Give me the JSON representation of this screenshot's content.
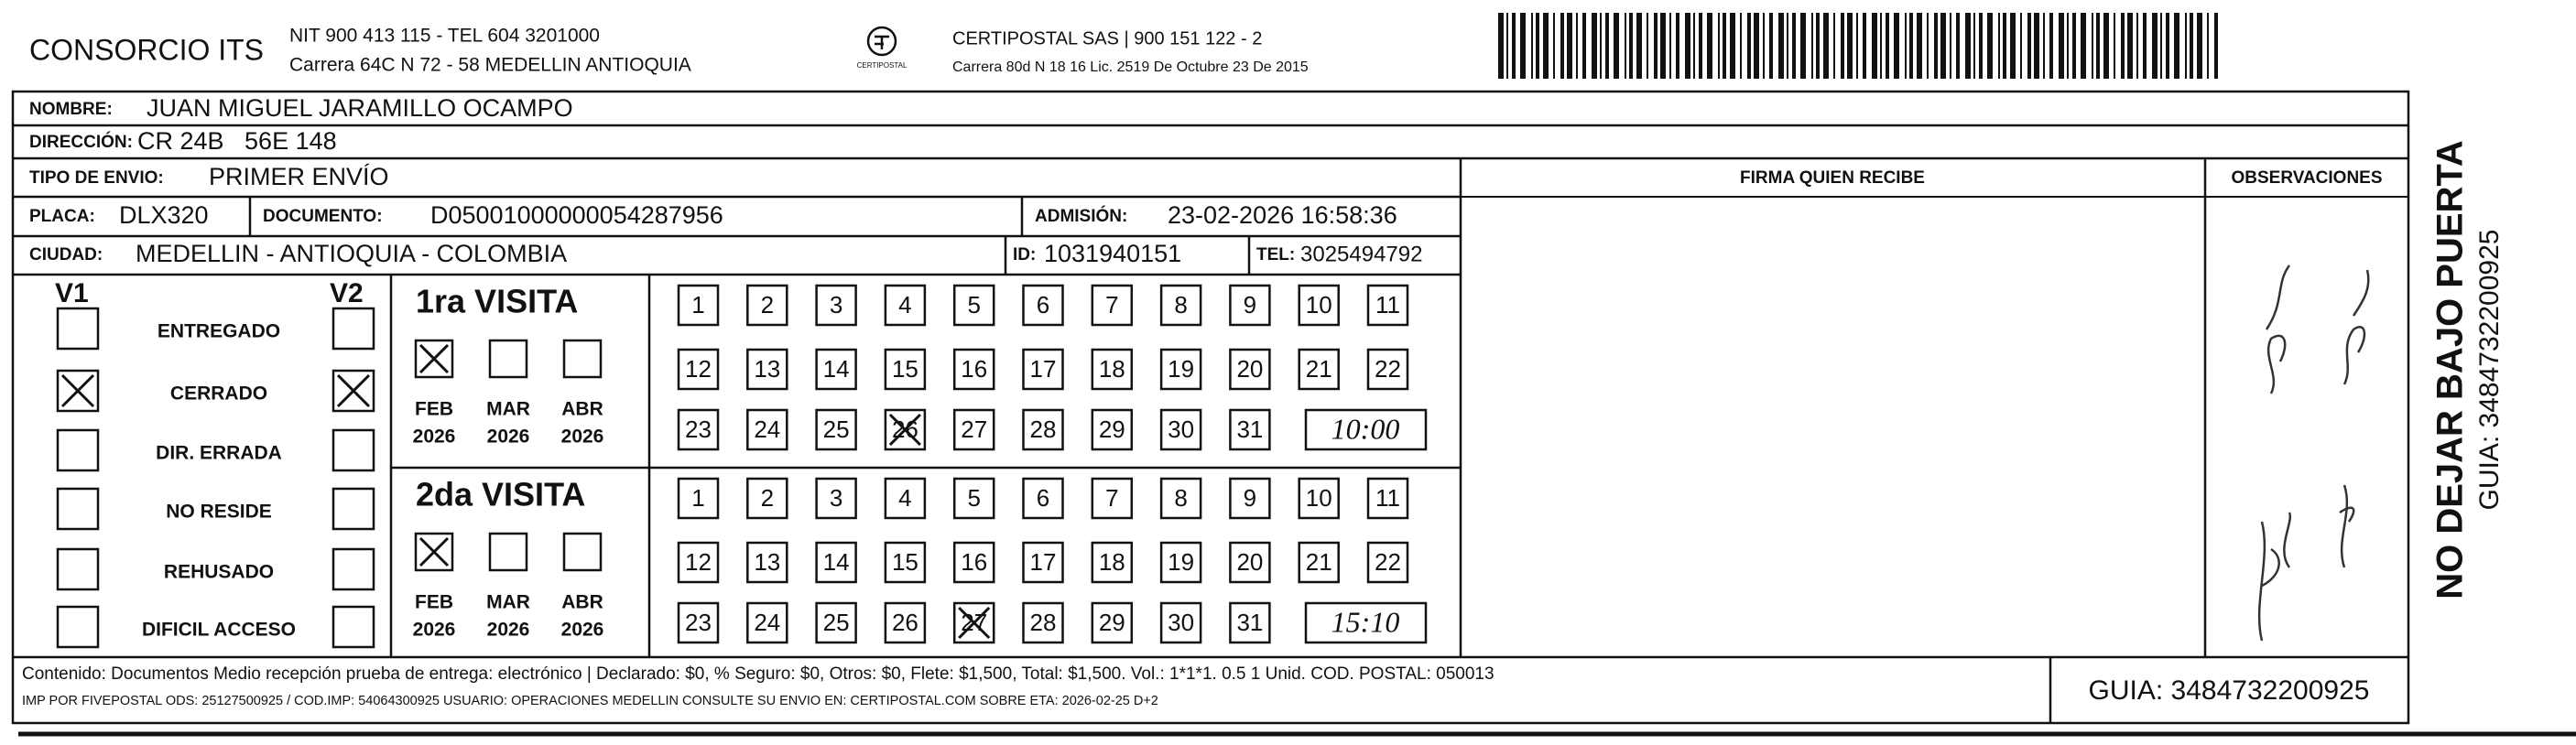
{
  "header": {
    "company": "CONSORCIO ITS",
    "nit": "NIT 900 413 115 - TEL 604 3201000",
    "address": "Carrera 64C N 72 - 58 MEDELLIN ANTIOQUIA",
    "logo_text": "CERTIPOSTAL",
    "carrier": "CERTIPOSTAL SAS | 900 151 122 - 2",
    "carrier_address": "Carrera 80d N 18 16 Lic. 2519 De Octubre 23 De 2015"
  },
  "fields": {
    "name": {
      "label": "NOMBRE:",
      "value": "JUAN MIGUEL JARAMILLO OCAMPO"
    },
    "address": {
      "label": "DIRECCIÓN:",
      "value": "CR 24B   56E 148"
    },
    "shipment_type": {
      "label": "TIPO DE ENVIO:",
      "value": "PRIMER ENVÍO"
    },
    "plate": {
      "label": "PLACA:",
      "value": "DLX320"
    },
    "document": {
      "label": "DOCUMENTO:",
      "value": "D05001000000054287956"
    },
    "admission": {
      "label": "ADMISIÓN:",
      "value": "23-02-2026 16:58:36"
    },
    "city": {
      "label": "CIUDAD:",
      "value": "MEDELLIN - ANTIOQUIA - COLOMBIA"
    },
    "id": {
      "label": "ID:",
      "value": "1031940151"
    },
    "phone": {
      "label": "TEL:",
      "value": "3025494792"
    }
  },
  "signature_header": "FIRMA QUIEN RECIBE",
  "observations_header": "OBSERVACIONES",
  "v1_label": "V1",
  "v2_label": "V2",
  "statuses": [
    {
      "label": "ENTREGADO",
      "v1": false,
      "v2": false
    },
    {
      "label": "CERRADO",
      "v1": true,
      "v2": true
    },
    {
      "label": "DIR. ERRADA",
      "v1": false,
      "v2": false
    },
    {
      "label": "NO RESIDE",
      "v1": false,
      "v2": false
    },
    {
      "label": "REHUSADO",
      "v1": false,
      "v2": false
    },
    {
      "label": "DIFICIL ACCESO",
      "v1": false,
      "v2": false
    }
  ],
  "visits": [
    {
      "title": "1ra VISITA",
      "months": [
        {
          "month": "FEB",
          "year": "2026",
          "checked": true
        },
        {
          "month": "MAR",
          "year": "2026",
          "checked": false
        },
        {
          "month": "ABR",
          "year": "2026",
          "checked": false
        }
      ],
      "days": [
        1,
        2,
        3,
        4,
        5,
        6,
        7,
        8,
        9,
        10,
        11,
        12,
        13,
        14,
        15,
        16,
        17,
        18,
        19,
        20,
        21,
        22,
        23,
        24,
        25,
        26,
        27,
        28,
        29,
        30,
        31
      ],
      "marked_day": 26,
      "time": "10:00"
    },
    {
      "title": "2da VISITA",
      "months": [
        {
          "month": "FEB",
          "year": "2026",
          "checked": true
        },
        {
          "month": "MAR",
          "year": "2026",
          "checked": false
        },
        {
          "month": "ABR",
          "year": "2026",
          "checked": false
        }
      ],
      "days": [
        1,
        2,
        3,
        4,
        5,
        6,
        7,
        8,
        9,
        10,
        11,
        12,
        13,
        14,
        15,
        16,
        17,
        18,
        19,
        20,
        21,
        22,
        23,
        24,
        25,
        26,
        27,
        28,
        29,
        30,
        31
      ],
      "marked_day": 27,
      "time": "15:10"
    }
  ],
  "footer": {
    "contents": "Contenido: Documentos Medio recepción prueba de entrega: electrónico | Declarado: $0, % Seguro: $0, Otros: $0, Flete: $1,500, Total: $1,500. Vol.: 1*1*1. 0.5  1 Unid. COD. POSTAL: 050013",
    "imprint": "IMP POR FIVEPOSTAL ODS: 25127500925 / COD.IMP: 54064300925 USUARIO: OPERACIONES MEDELLIN CONSULTE SU ENVIO EN: CERTIPOSTAL.COM SOBRE ETA: 2026-02-25 D+2",
    "guide": "GUIA: 3484732200925"
  },
  "side": {
    "warning": "NO DEJAR BAJO PUERTA",
    "guide": "GUIA: 3484732200925"
  }
}
